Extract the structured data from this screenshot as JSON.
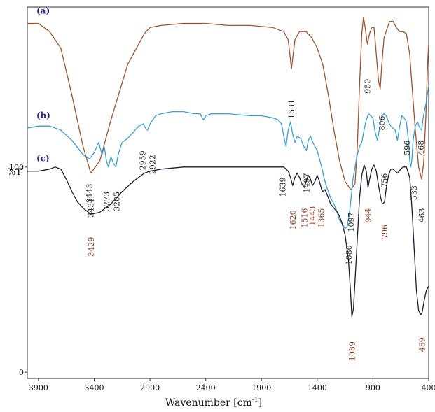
{
  "chart_data": {
    "type": "line",
    "xlabel": "Wavenumber [cm",
    "xlabel_sup": "-1",
    "xlabel_end": "]",
    "ylabel": "%T",
    "x_reversed": true,
    "xlim": [
      4000,
      400
    ],
    "x_ticks": [
      3900,
      3400,
      2900,
      2400,
      1900,
      1400,
      900,
      400
    ],
    "y_ticks": [
      {
        "label": "100",
        "value": 100
      },
      {
        "label": "0",
        "value": 0
      }
    ],
    "ylim": [
      -3,
      178
    ],
    "grid": false,
    "series": [
      {
        "name": "(a)",
        "color": "#a0522d",
        "points": [
          [
            4000,
            170
          ],
          [
            3900,
            170
          ],
          [
            3800,
            166
          ],
          [
            3700,
            158
          ],
          [
            3600,
            135
          ],
          [
            3500,
            110
          ],
          [
            3431,
            97
          ],
          [
            3350,
            103
          ],
          [
            3250,
            123
          ],
          [
            3100,
            150
          ],
          [
            2950,
            165
          ],
          [
            2900,
            168
          ],
          [
            2800,
            169
          ],
          [
            2600,
            170
          ],
          [
            2400,
            170
          ],
          [
            2200,
            169
          ],
          [
            2000,
            169
          ],
          [
            1800,
            168
          ],
          [
            1700,
            166
          ],
          [
            1660,
            162
          ],
          [
            1631,
            148
          ],
          [
            1600,
            162
          ],
          [
            1560,
            166
          ],
          [
            1500,
            166
          ],
          [
            1450,
            163
          ],
          [
            1400,
            158
          ],
          [
            1350,
            150
          ],
          [
            1300,
            135
          ],
          [
            1250,
            118
          ],
          [
            1200,
            103
          ],
          [
            1150,
            93
          ],
          [
            1100,
            89
          ],
          [
            1097,
            89
          ],
          [
            1060,
            92
          ],
          [
            1040,
            110
          ],
          [
            1020,
            140
          ],
          [
            1000,
            165
          ],
          [
            985,
            173
          ],
          [
            970,
            168
          ],
          [
            950,
            160
          ],
          [
            930,
            165
          ],
          [
            910,
            168
          ],
          [
            890,
            168
          ],
          [
            870,
            155
          ],
          [
            850,
            142
          ],
          [
            835,
            138
          ],
          [
            820,
            150
          ],
          [
            800,
            163
          ],
          [
            770,
            168
          ],
          [
            750,
            171
          ],
          [
            720,
            171
          ],
          [
            690,
            168
          ],
          [
            660,
            166
          ],
          [
            630,
            166
          ],
          [
            600,
            165
          ],
          [
            570,
            155
          ],
          [
            550,
            140
          ],
          [
            520,
            118
          ],
          [
            490,
            100
          ],
          [
            463,
            94
          ],
          [
            445,
            102
          ],
          [
            425,
            125
          ],
          [
            410,
            150
          ],
          [
            400,
            160
          ]
        ]
      },
      {
        "name": "(b)",
        "color": "#3a9fd1",
        "points": [
          [
            4000,
            119
          ],
          [
            3900,
            120
          ],
          [
            3800,
            120
          ],
          [
            3700,
            118
          ],
          [
            3600,
            113
          ],
          [
            3500,
            106
          ],
          [
            3443,
            104
          ],
          [
            3400,
            107
          ],
          [
            3360,
            112
          ],
          [
            3330,
            106
          ],
          [
            3310,
            110
          ],
          [
            3290,
            103
          ],
          [
            3273,
            100
          ],
          [
            3250,
            105
          ],
          [
            3230,
            102
          ],
          [
            3205,
            100
          ],
          [
            3185,
            106
          ],
          [
            3150,
            112
          ],
          [
            3100,
            114
          ],
          [
            3050,
            117
          ],
          [
            3000,
            120
          ],
          [
            2959,
            121
          ],
          [
            2940,
            119
          ],
          [
            2922,
            118
          ],
          [
            2900,
            121
          ],
          [
            2850,
            125
          ],
          [
            2800,
            126
          ],
          [
            2700,
            127
          ],
          [
            2600,
            127
          ],
          [
            2500,
            126
          ],
          [
            2450,
            126
          ],
          [
            2420,
            123
          ],
          [
            2400,
            125
          ],
          [
            2350,
            126
          ],
          [
            2200,
            126
          ],
          [
            2000,
            125
          ],
          [
            1900,
            125
          ],
          [
            1800,
            124
          ],
          [
            1750,
            123
          ],
          [
            1720,
            121
          ],
          [
            1700,
            115
          ],
          [
            1680,
            110
          ],
          [
            1660,
            118
          ],
          [
            1650,
            120
          ],
          [
            1639,
            122
          ],
          [
            1620,
            116
          ],
          [
            1600,
            112
          ],
          [
            1580,
            115
          ],
          [
            1550,
            114
          ],
          [
            1520,
            110
          ],
          [
            1497,
            108
          ],
          [
            1480,
            113
          ],
          [
            1460,
            115
          ],
          [
            1440,
            112
          ],
          [
            1420,
            110
          ],
          [
            1400,
            108
          ],
          [
            1380,
            104
          ],
          [
            1360,
            100
          ],
          [
            1340,
            95
          ],
          [
            1320,
            91
          ],
          [
            1300,
            88
          ],
          [
            1280,
            85
          ],
          [
            1250,
            82
          ],
          [
            1220,
            78
          ],
          [
            1200,
            74
          ],
          [
            1170,
            72
          ],
          [
            1150,
            70
          ],
          [
            1130,
            71
          ],
          [
            1110,
            78
          ],
          [
            1090,
            88
          ],
          [
            1080,
            94
          ],
          [
            1060,
            100
          ],
          [
            1040,
            106
          ],
          [
            1020,
            110
          ],
          [
            1000,
            112
          ],
          [
            980,
            118
          ],
          [
            960,
            123
          ],
          [
            940,
            126
          ],
          [
            920,
            125
          ],
          [
            900,
            124
          ],
          [
            880,
            117
          ],
          [
            860,
            113
          ],
          [
            840,
            119
          ],
          [
            820,
            125
          ],
          [
            800,
            126
          ],
          [
            780,
            125
          ],
          [
            760,
            122
          ],
          [
            740,
            120
          ],
          [
            720,
            119
          ],
          [
            700,
            118
          ],
          [
            680,
            113
          ],
          [
            660,
            120
          ],
          [
            640,
            125
          ],
          [
            620,
            124
          ],
          [
            600,
            122
          ],
          [
            580,
            112
          ],
          [
            570,
            103
          ],
          [
            560,
            100
          ],
          [
            550,
            104
          ],
          [
            540,
            113
          ],
          [
            520,
            120
          ],
          [
            500,
            122
          ],
          [
            480,
            119
          ],
          [
            463,
            118
          ],
          [
            450,
            124
          ],
          [
            420,
            132
          ],
          [
            400,
            140
          ]
        ]
      },
      {
        "name": "(c)",
        "color": "#1c1c2e",
        "points": [
          [
            4000,
            98
          ],
          [
            3900,
            98
          ],
          [
            3800,
            99
          ],
          [
            3750,
            100
          ],
          [
            3700,
            99
          ],
          [
            3650,
            94
          ],
          [
            3600,
            88
          ],
          [
            3550,
            83
          ],
          [
            3500,
            80
          ],
          [
            3429,
            77
          ],
          [
            3350,
            78
          ],
          [
            3250,
            82
          ],
          [
            3150,
            88
          ],
          [
            3050,
            93
          ],
          [
            2950,
            97
          ],
          [
            2900,
            98
          ],
          [
            2800,
            99
          ],
          [
            2600,
            100
          ],
          [
            2400,
            100
          ],
          [
            2200,
            100
          ],
          [
            2000,
            100
          ],
          [
            1800,
            100
          ],
          [
            1700,
            100
          ],
          [
            1660,
            98
          ],
          [
            1640,
            95
          ],
          [
            1620,
            91
          ],
          [
            1600,
            95
          ],
          [
            1580,
            97
          ],
          [
            1560,
            95
          ],
          [
            1540,
            92
          ],
          [
            1516,
            90
          ],
          [
            1500,
            93
          ],
          [
            1480,
            96
          ],
          [
            1460,
            94
          ],
          [
            1443,
            91
          ],
          [
            1420,
            93
          ],
          [
            1400,
            96
          ],
          [
            1380,
            93
          ],
          [
            1360,
            89
          ],
          [
            1350,
            88
          ],
          [
            1330,
            89
          ],
          [
            1300,
            85
          ],
          [
            1280,
            82
          ],
          [
            1250,
            80
          ],
          [
            1220,
            78
          ],
          [
            1200,
            76
          ],
          [
            1180,
            73
          ],
          [
            1150,
            67
          ],
          [
            1120,
            55
          ],
          [
            1100,
            38
          ],
          [
            1089,
            27
          ],
          [
            1075,
            31
          ],
          [
            1060,
            45
          ],
          [
            1040,
            65
          ],
          [
            1020,
            85
          ],
          [
            1000,
            96
          ],
          [
            980,
            101
          ],
          [
            960,
            98
          ],
          [
            944,
            90
          ],
          [
            930,
            94
          ],
          [
            910,
            99
          ],
          [
            890,
            101
          ],
          [
            870,
            98
          ],
          [
            850,
            91
          ],
          [
            830,
            85
          ],
          [
            815,
            82
          ],
          [
            796,
            83
          ],
          [
            780,
            90
          ],
          [
            760,
            96
          ],
          [
            740,
            99
          ],
          [
            720,
            99
          ],
          [
            700,
            98
          ],
          [
            680,
            97
          ],
          [
            650,
            99
          ],
          [
            630,
            100
          ],
          [
            600,
            100
          ],
          [
            570,
            95
          ],
          [
            550,
            80
          ],
          [
            530,
            60
          ],
          [
            510,
            40
          ],
          [
            490,
            30
          ],
          [
            470,
            28
          ],
          [
            459,
            29
          ],
          [
            440,
            35
          ],
          [
            420,
            40
          ],
          [
            400,
            42
          ]
        ]
      }
    ],
    "annotations": [
      {
        "text": "3431",
        "x": 3431,
        "y": 85,
        "color": "#222222"
      },
      {
        "text": "1631",
        "x": 1631,
        "y": 133,
        "color": "#222222"
      },
      {
        "text": "950",
        "x": 950,
        "y": 143,
        "color": "#222222"
      },
      {
        "text": "806",
        "x": 820,
        "y": 125,
        "color": "#222222"
      },
      {
        "text": "1097",
        "x": 1097,
        "y": 78,
        "color": "#222222"
      },
      {
        "text": "463",
        "x": 463,
        "y": 80,
        "color": "#222222"
      },
      {
        "text": "3443",
        "x": 3443,
        "y": 92,
        "color": "#222222"
      },
      {
        "text": "3273",
        "x": 3290,
        "y": 88,
        "color": "#222222"
      },
      {
        "text": "3205",
        "x": 3200,
        "y": 88,
        "color": "#222222"
      },
      {
        "text": "2959",
        "x": 2965,
        "y": 108,
        "color": "#222222"
      },
      {
        "text": "2922",
        "x": 2880,
        "y": 106,
        "color": "#222222"
      },
      {
        "text": "1639",
        "x": 1710,
        "y": 95,
        "color": "#222222"
      },
      {
        "text": "1497",
        "x": 1497,
        "y": 97,
        "color": "#222222"
      },
      {
        "text": "756",
        "x": 800,
        "y": 97,
        "color": "#222222"
      },
      {
        "text": "596",
        "x": 596,
        "y": 113,
        "color": "#222222"
      },
      {
        "text": "468",
        "x": 468,
        "y": 113,
        "color": "#222222"
      },
      {
        "text": "533",
        "x": 533,
        "y": 91,
        "color": "#222222"
      },
      {
        "text": "1080",
        "x": 1115,
        "y": 62,
        "color": "#222222"
      },
      {
        "text": "3429",
        "x": 3429,
        "y": 66,
        "color": "#8b3a1a"
      },
      {
        "text": "1620",
        "x": 1620,
        "y": 79,
        "color": "#8b3a1a"
      },
      {
        "text": "1516",
        "x": 1516,
        "y": 80,
        "color": "#8b3a1a"
      },
      {
        "text": "1443",
        "x": 1443,
        "y": 81,
        "color": "#8b3a1a"
      },
      {
        "text": "1365",
        "x": 1365,
        "y": 80,
        "color": "#8b3a1a"
      },
      {
        "text": "944",
        "x": 944,
        "y": 80,
        "color": "#8b3a1a"
      },
      {
        "text": "796",
        "x": 796,
        "y": 72,
        "color": "#8b3a1a"
      },
      {
        "text": "1089",
        "x": 1089,
        "y": 15,
        "color": "#8b3a1a"
      },
      {
        "text": "459",
        "x": 459,
        "y": 17,
        "color": "#8b3a1a"
      }
    ]
  }
}
